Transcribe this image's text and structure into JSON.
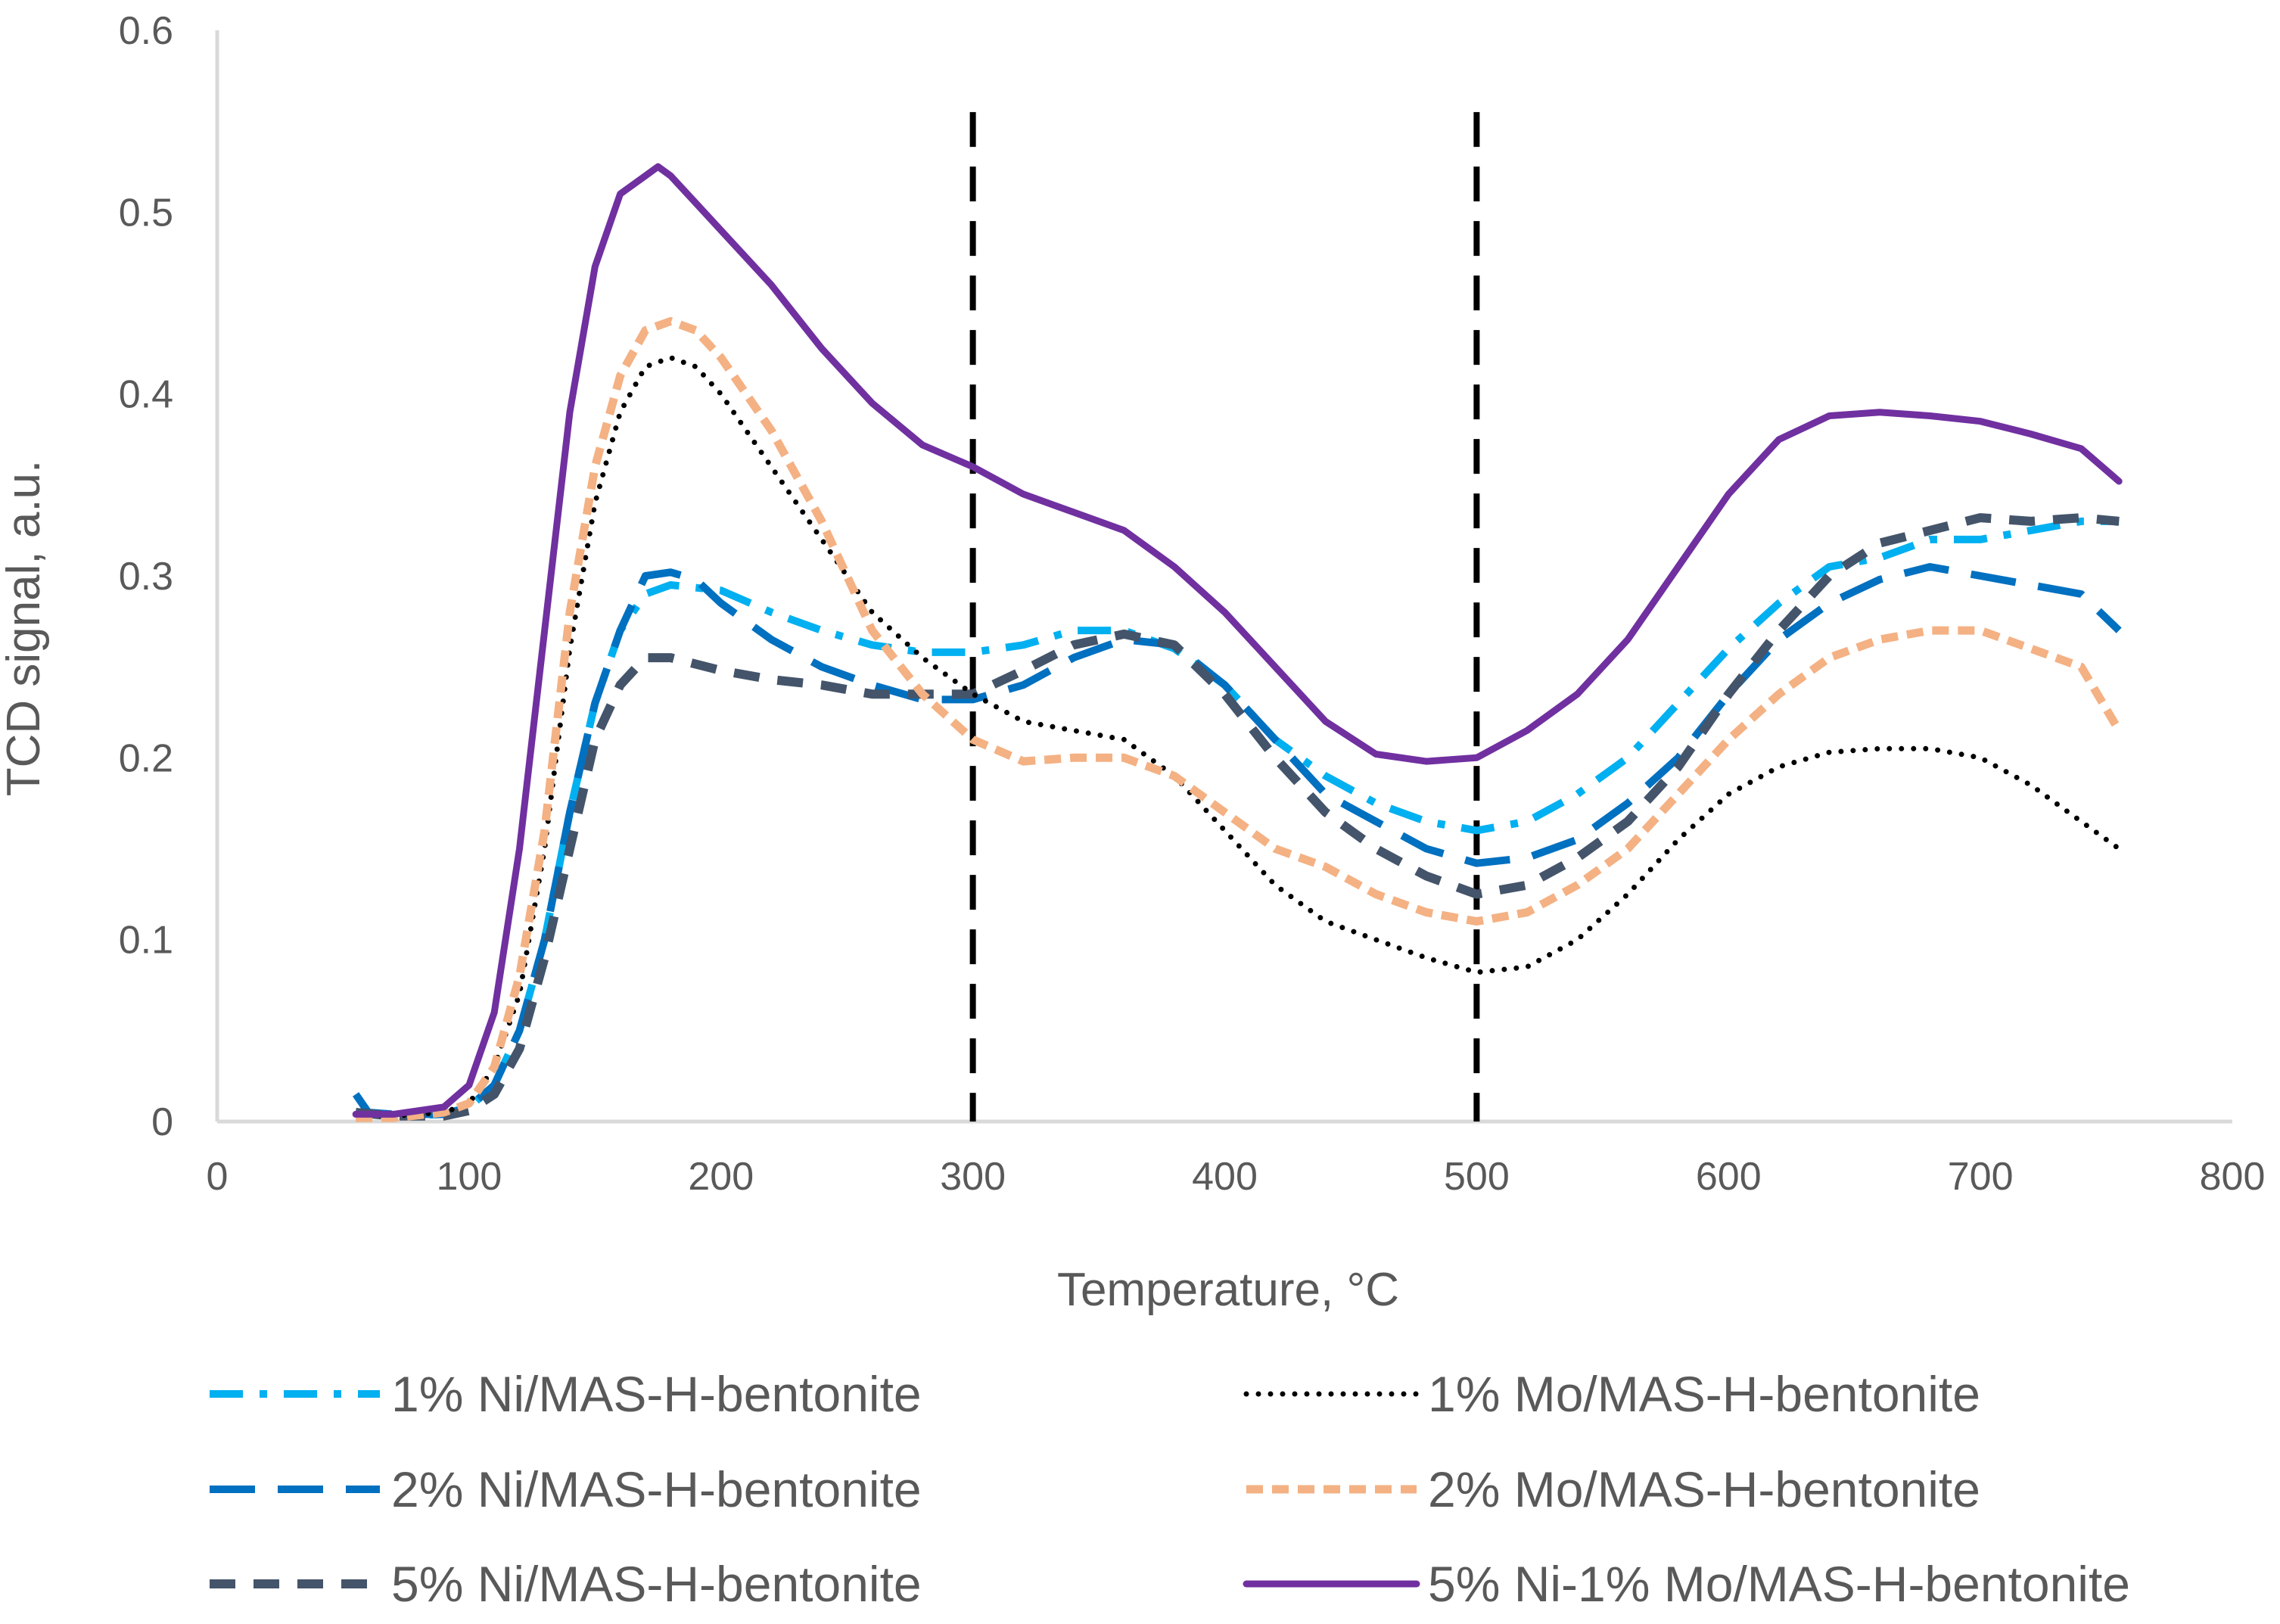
{
  "chart_data": {
    "type": "line",
    "title": "",
    "xlabel": "Temperature, °C",
    "ylabel": "TCD signal, a.u.",
    "xlim": [
      0,
      800
    ],
    "ylim": [
      0,
      0.6
    ],
    "x_ticks": [
      0,
      100,
      200,
      300,
      400,
      500,
      600,
      700,
      800
    ],
    "x_tick_labels": [
      "0",
      "100",
      "200",
      "300",
      "400",
      "500",
      "600",
      "700",
      "800"
    ],
    "y_ticks": [
      0,
      0.1,
      0.2,
      0.3,
      0.4,
      0.5,
      0.6
    ],
    "y_tick_labels": [
      "0",
      "0.1",
      "0.2",
      "0.3",
      "0.4",
      "0.5",
      "0.6"
    ],
    "grid": false,
    "legend_position": "bottom",
    "reference_lines": [
      {
        "x": 300,
        "style": "dashed",
        "color": "#000000"
      },
      {
        "x": 500,
        "style": "dashed",
        "color": "#000000"
      }
    ],
    "series": [
      {
        "name": "1% Ni/MAS-H-bentonite",
        "color": "#00B0F0",
        "dash": "dash-dot",
        "x": [
          55,
          70,
          90,
          100,
          110,
          120,
          130,
          140,
          150,
          160,
          170,
          180,
          200,
          220,
          240,
          260,
          280,
          300,
          320,
          340,
          360,
          380,
          400,
          420,
          440,
          460,
          480,
          500,
          520,
          540,
          560,
          580,
          600,
          620,
          640,
          660,
          680,
          700,
          720,
          740,
          755
        ],
        "values": [
          0.005,
          0.003,
          0.004,
          0.008,
          0.02,
          0.05,
          0.1,
          0.17,
          0.23,
          0.27,
          0.29,
          0.295,
          0.292,
          0.28,
          0.27,
          0.262,
          0.258,
          0.258,
          0.262,
          0.27,
          0.27,
          0.26,
          0.24,
          0.21,
          0.19,
          0.175,
          0.165,
          0.16,
          0.165,
          0.18,
          0.2,
          0.23,
          0.26,
          0.285,
          0.305,
          0.31,
          0.32,
          0.32,
          0.325,
          0.33,
          0.33
        ]
      },
      {
        "name": "2% Ni/MAS-H-bentonite",
        "color": "#0070C0",
        "dash": "long-dash",
        "x": [
          55,
          60,
          70,
          90,
          100,
          110,
          120,
          130,
          140,
          150,
          160,
          170,
          180,
          190,
          200,
          220,
          240,
          260,
          280,
          300,
          320,
          340,
          360,
          380,
          400,
          420,
          440,
          460,
          480,
          500,
          520,
          540,
          560,
          580,
          600,
          620,
          640,
          660,
          680,
          700,
          720,
          740,
          755
        ],
        "values": [
          0.015,
          0.005,
          0.004,
          0.004,
          0.008,
          0.02,
          0.05,
          0.1,
          0.17,
          0.23,
          0.27,
          0.3,
          0.302,
          0.298,
          0.285,
          0.265,
          0.25,
          0.24,
          0.232,
          0.232,
          0.24,
          0.255,
          0.265,
          0.262,
          0.24,
          0.21,
          0.18,
          0.165,
          0.15,
          0.142,
          0.145,
          0.155,
          0.175,
          0.2,
          0.235,
          0.265,
          0.285,
          0.298,
          0.305,
          0.3,
          0.295,
          0.29,
          0.27
        ]
      },
      {
        "name": "5% Ni/MAS-H-bentonite",
        "color": "#44546A",
        "dash": "dash",
        "x": [
          55,
          70,
          90,
          100,
          110,
          120,
          130,
          140,
          150,
          160,
          170,
          180,
          200,
          220,
          240,
          260,
          280,
          300,
          320,
          340,
          360,
          380,
          400,
          420,
          440,
          460,
          480,
          500,
          520,
          540,
          560,
          580,
          600,
          620,
          640,
          660,
          680,
          700,
          720,
          740,
          755
        ],
        "values": [
          0.005,
          0.003,
          0.003,
          0.006,
          0.015,
          0.04,
          0.09,
          0.15,
          0.21,
          0.24,
          0.255,
          0.255,
          0.248,
          0.243,
          0.24,
          0.235,
          0.235,
          0.235,
          0.248,
          0.262,
          0.268,
          0.262,
          0.235,
          0.2,
          0.17,
          0.15,
          0.135,
          0.125,
          0.13,
          0.145,
          0.165,
          0.195,
          0.235,
          0.27,
          0.3,
          0.318,
          0.325,
          0.332,
          0.33,
          0.332,
          0.33
        ]
      },
      {
        "name": "1% Mo/MAS-H-bentonite",
        "color": "#000000",
        "dash": "dot",
        "x": [
          55,
          70,
          90,
          100,
          110,
          120,
          130,
          140,
          150,
          160,
          170,
          180,
          190,
          200,
          220,
          240,
          260,
          280,
          300,
          320,
          340,
          360,
          380,
          400,
          420,
          440,
          460,
          480,
          500,
          520,
          540,
          560,
          580,
          600,
          620,
          640,
          660,
          680,
          700,
          720,
          740,
          755
        ],
        "values": [
          0.004,
          0.003,
          0.005,
          0.01,
          0.03,
          0.07,
          0.15,
          0.26,
          0.34,
          0.39,
          0.415,
          0.42,
          0.415,
          0.4,
          0.36,
          0.32,
          0.28,
          0.255,
          0.235,
          0.22,
          0.215,
          0.21,
          0.19,
          0.16,
          0.13,
          0.11,
          0.1,
          0.09,
          0.082,
          0.085,
          0.1,
          0.125,
          0.155,
          0.18,
          0.195,
          0.203,
          0.205,
          0.205,
          0.2,
          0.185,
          0.165,
          0.15
        ]
      },
      {
        "name": "2% Mo/MAS-H-bentonite",
        "color": "#F4B183",
        "dash": "short-dash",
        "x": [
          55,
          70,
          90,
          100,
          110,
          120,
          130,
          140,
          150,
          160,
          170,
          180,
          190,
          200,
          220,
          240,
          260,
          280,
          300,
          320,
          340,
          360,
          380,
          400,
          420,
          440,
          460,
          480,
          500,
          520,
          540,
          560,
          580,
          600,
          620,
          640,
          660,
          680,
          700,
          720,
          740,
          755
        ],
        "values": [
          0.002,
          0.002,
          0.005,
          0.01,
          0.03,
          0.08,
          0.16,
          0.28,
          0.36,
          0.41,
          0.435,
          0.44,
          0.435,
          0.42,
          0.38,
          0.33,
          0.27,
          0.235,
          0.21,
          0.198,
          0.2,
          0.2,
          0.19,
          0.17,
          0.15,
          0.14,
          0.125,
          0.115,
          0.11,
          0.115,
          0.13,
          0.15,
          0.18,
          0.21,
          0.235,
          0.255,
          0.265,
          0.27,
          0.27,
          0.26,
          0.25,
          0.215
        ]
      },
      {
        "name": "5% Ni-1% Mo/MAS-H-bentonite",
        "color": "#7030A0",
        "dash": "solid",
        "x": [
          55,
          70,
          90,
          100,
          110,
          120,
          130,
          140,
          150,
          160,
          170,
          175,
          180,
          190,
          200,
          220,
          240,
          260,
          280,
          300,
          320,
          340,
          360,
          380,
          400,
          420,
          440,
          460,
          480,
          500,
          520,
          540,
          560,
          580,
          600,
          620,
          640,
          660,
          680,
          700,
          720,
          740,
          755
        ],
        "values": [
          0.004,
          0.004,
          0.008,
          0.02,
          0.06,
          0.15,
          0.27,
          0.39,
          0.47,
          0.51,
          0.52,
          0.525,
          0.52,
          0.505,
          0.49,
          0.46,
          0.425,
          0.395,
          0.372,
          0.36,
          0.345,
          0.335,
          0.325,
          0.305,
          0.28,
          0.25,
          0.22,
          0.202,
          0.198,
          0.2,
          0.215,
          0.235,
          0.265,
          0.305,
          0.345,
          0.375,
          0.388,
          0.39,
          0.388,
          0.385,
          0.378,
          0.37,
          0.352
        ]
      }
    ]
  }
}
